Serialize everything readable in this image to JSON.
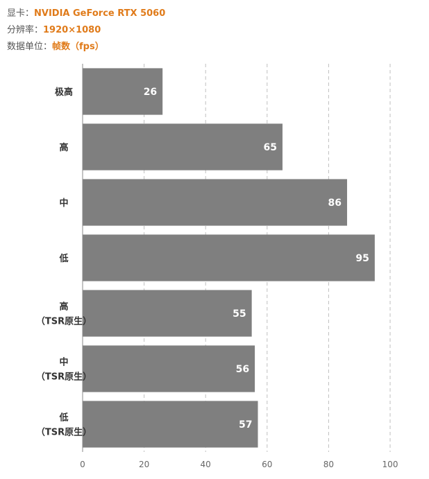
{
  "header": {
    "gpu_label": "显卡：",
    "gpu_value": "NVIDIA GeForce RTX 5060",
    "res_label": "分辨率：",
    "res_value": "1920×1080",
    "unit_label": "数据单位：",
    "unit_value": "帧数（fps）"
  },
  "colors": {
    "accent": "#E07B1A",
    "bar": "#7F7F7F",
    "grid": "#BFBFBF",
    "axis": "#888888"
  },
  "chart_data": {
    "type": "bar",
    "orientation": "horizontal",
    "categories": [
      [
        "极高"
      ],
      [
        "高"
      ],
      [
        "中"
      ],
      [
        "低"
      ],
      [
        "高",
        "（TSR原生）"
      ],
      [
        "中",
        "（TSR原生）"
      ],
      [
        "低",
        "（TSR原生）"
      ]
    ],
    "values": [
      26,
      65,
      86,
      95,
      55,
      56,
      57
    ],
    "xlim": [
      0,
      100
    ],
    "xticks": [
      0,
      20,
      40,
      60,
      80,
      100
    ],
    "grid": true,
    "data_labels": true
  }
}
